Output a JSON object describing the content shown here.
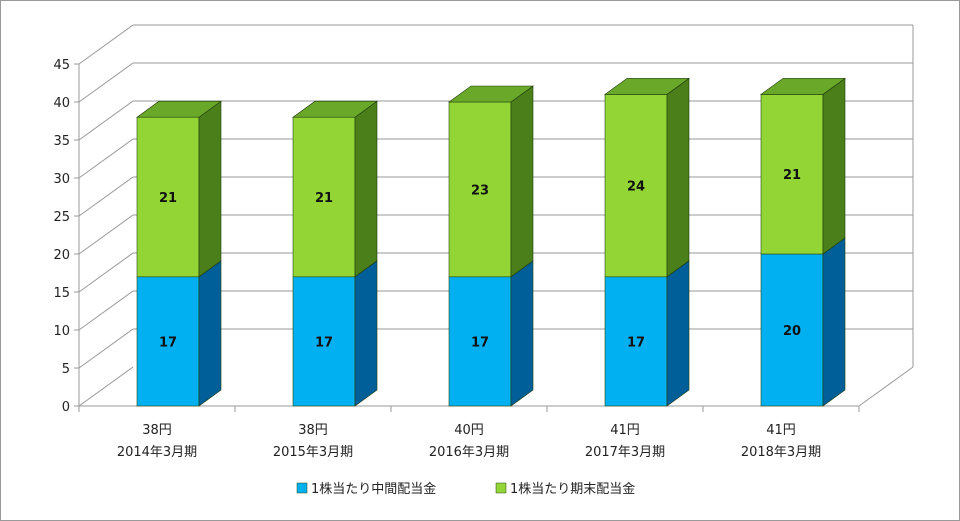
{
  "chart_data": {
    "type": "bar",
    "stacked": true,
    "three_d": true,
    "categories": [
      [
        "38円",
        "2014年3月期"
      ],
      [
        "38円",
        "2015年3月期"
      ],
      [
        "40円",
        "2016年3月期"
      ],
      [
        "41円",
        "2017年3月期"
      ],
      [
        "41円",
        "2018年3月期"
      ]
    ],
    "series": [
      {
        "name": "1株当たり中間配当金",
        "values": [
          17,
          17,
          17,
          17,
          20
        ],
        "color": "#00b0f0",
        "side_color": "#005f99",
        "top_color": "#33c4f5"
      },
      {
        "name": "1株当たり期末配当金",
        "values": [
          21,
          21,
          23,
          24,
          21
        ],
        "color": "#92d535",
        "side_color": "#4a7f1a",
        "top_color": "#6aa82a"
      }
    ],
    "yticks": [
      "0",
      "5",
      "10",
      "15",
      "20",
      "25",
      "30",
      "35",
      "40",
      "45"
    ],
    "ylim": [
      0,
      45
    ],
    "grid": true,
    "legend_position": "bottom",
    "data_labels": true
  }
}
